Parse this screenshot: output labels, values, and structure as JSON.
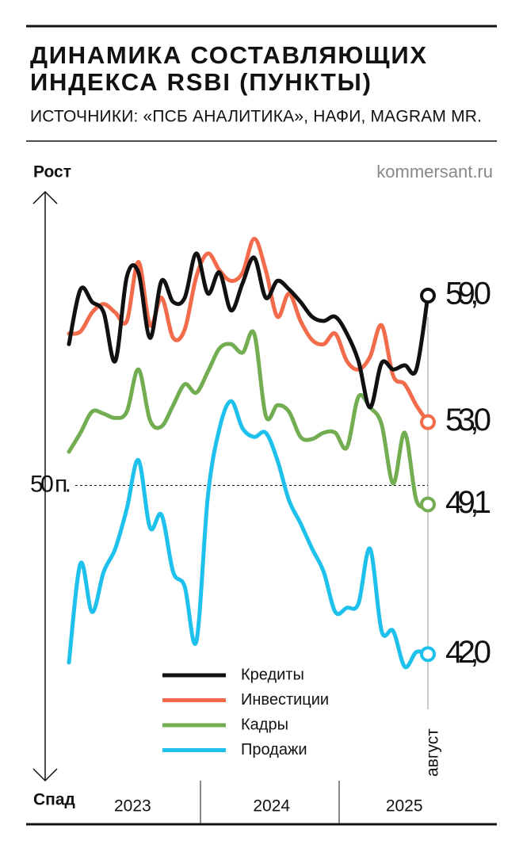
{
  "chart_data": {
    "type": "line",
    "title": [
      "ДИНАМИКА СОСТАВЛЯЮЩИХ",
      "ИНДЕКСА RSBI (ПУНКТЫ)"
    ],
    "subtitle": "ИСТОЧНИКИ: «ПСБ АНАЛИТИКА», НАФИ, MAGRAM MR.",
    "site": "kommersant.ru",
    "y_top_label": "Рост",
    "y_bottom_label": "Спад",
    "years": [
      "2023",
      "2024",
      "2025"
    ],
    "categories": [
      null,
      null,
      null,
      null,
      null,
      null,
      null,
      null,
      null,
      null,
      null,
      null,
      null,
      null,
      null,
      null,
      null,
      null,
      null,
      null,
      null,
      null,
      null,
      null,
      null,
      null,
      null,
      null,
      null,
      null,
      null,
      "август"
    ],
    "ylim": [
      36,
      64
    ],
    "reference_line": {
      "value": 50,
      "label": "50 п."
    },
    "series": [
      {
        "name": "Кредиты",
        "color": "#111111",
        "end_label": "59,0",
        "values": [
          56.7,
          59.3,
          58.7,
          58.2,
          55.9,
          59.9,
          60.1,
          57.0,
          59.7,
          58.7,
          58.9,
          61.0,
          59.1,
          60.1,
          58.3,
          59.6,
          60.8,
          58.9,
          59.7,
          59.3,
          58.7,
          58.0,
          57.8,
          58.0,
          57.2,
          55.9,
          53.7,
          55.8,
          55.5,
          55.7,
          55.5,
          59.0
        ]
      },
      {
        "name": "Инвестиции",
        "color": "#f26b4a",
        "end_label": "53,0",
        "values": [
          57.2,
          57.3,
          58.2,
          58.6,
          58.2,
          57.8,
          60.6,
          57.6,
          58.9,
          57.0,
          57.4,
          59.9,
          61.0,
          60.2,
          59.7,
          60.1,
          61.7,
          60.2,
          58.0,
          59.1,
          57.8,
          56.9,
          56.7,
          57.2,
          55.9,
          55.5,
          56.1,
          57.6,
          55.2,
          54.8,
          53.8,
          53.0
        ]
      },
      {
        "name": "Кадры",
        "color": "#73ad52",
        "end_label": "49,1",
        "values": [
          51.6,
          52.5,
          53.5,
          53.4,
          53.2,
          53.5,
          55.5,
          53.1,
          52.8,
          53.8,
          54.8,
          54.4,
          55.4,
          56.5,
          56.7,
          56.3,
          57.2,
          53.3,
          53.8,
          53.5,
          52.3,
          52.2,
          52.5,
          52.5,
          51.8,
          54.2,
          53.7,
          52.9,
          50.1,
          52.5,
          49.3,
          49.1
        ]
      },
      {
        "name": "Продажи",
        "color": "#1ec0ec",
        "end_label": "42,0",
        "values": [
          41.6,
          46.3,
          44.0,
          45.9,
          47.0,
          48.9,
          51.2,
          48.0,
          48.6,
          45.9,
          45.2,
          42.6,
          49.5,
          52.7,
          54.0,
          52.7,
          52.3,
          52.5,
          51.2,
          49.3,
          48.2,
          47.0,
          45.9,
          44.0,
          44.2,
          44.4,
          47.0,
          43.1,
          43.1,
          41.4,
          42.1,
          42.0
        ]
      }
    ]
  }
}
